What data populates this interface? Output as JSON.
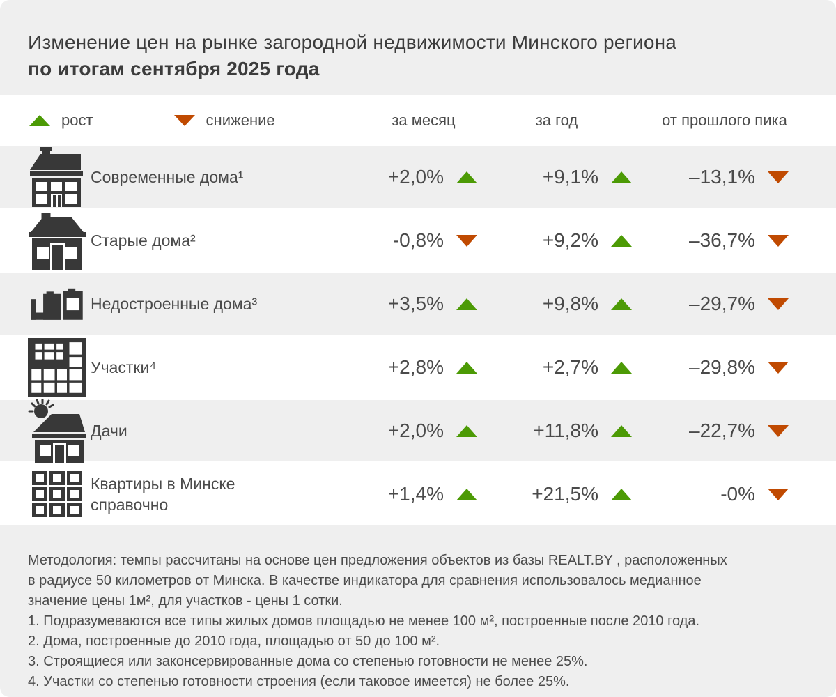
{
  "title": {
    "line1": "Изменение цен на рынке загородной недвижимости Минского региона",
    "line2": "по итогам сентября 2025 года"
  },
  "legend": {
    "up_label": "рост",
    "down_label": "снижение"
  },
  "columns": [
    "за месяц",
    "за год",
    "от прошлого пика"
  ],
  "colors": {
    "up": "#4c9a05",
    "down": "#c04a01",
    "band": "#efefef",
    "icon": "#383838",
    "text": "#4a4a4a"
  },
  "rows": [
    {
      "icon": "modern-house-icon",
      "label": "Современные дома¹",
      "month": {
        "value": "+2,0%",
        "dir": "up"
      },
      "year": {
        "value": "+9,1%",
        "dir": "up"
      },
      "peak": {
        "value": "–13,1%",
        "dir": "down"
      }
    },
    {
      "icon": "old-house-icon",
      "label": "Старые дома²",
      "month": {
        "value": "-0,8%",
        "dir": "down"
      },
      "year": {
        "value": "+9,2%",
        "dir": "up"
      },
      "peak": {
        "value": "–36,7%",
        "dir": "down"
      }
    },
    {
      "icon": "unfinished-house-icon",
      "label": "Недостроенные дома³",
      "month": {
        "value": "+3,5%",
        "dir": "up"
      },
      "year": {
        "value": "+9,8%",
        "dir": "up"
      },
      "peak": {
        "value": "–29,7%",
        "dir": "down"
      }
    },
    {
      "icon": "land-plot-icon",
      "label": "Участки⁴",
      "month": {
        "value": "+2,8%",
        "dir": "up"
      },
      "year": {
        "value": "+2,7%",
        "dir": "up"
      },
      "peak": {
        "value": "–29,8%",
        "dir": "down"
      }
    },
    {
      "icon": "dacha-house-icon",
      "label": "Дачи",
      "month": {
        "value": "+2,0%",
        "dir": "up"
      },
      "year": {
        "value": "+11,8%",
        "dir": "up"
      },
      "peak": {
        "value": "–22,7%",
        "dir": "down"
      }
    },
    {
      "icon": "apartment-building-icon",
      "label": "Квартиры в Минске",
      "label2": "справочно",
      "month": {
        "value": "+1,4%",
        "dir": "up"
      },
      "year": {
        "value": "+21,5%",
        "dir": "up"
      },
      "peak": {
        "value": "-0%",
        "dir": "down"
      }
    }
  ],
  "footer": {
    "methodology_lines": [
      "Методология: темпы рассчитаны на основе цен предложения объектов из базы REALT.BY , расположенных",
      "в радиусе 50 километров от Минска. В качестве индикатора для сравнения использовалось медианное",
      "значение цены 1м², для участков  - цены 1 сотки."
    ],
    "notes": [
      "1. Подразумеваются все типы жилых домов площадью не менее 100 м², построенные после 2010 года.",
      "2. Дома, построенные до 2010 года, площадью от 50 до 100 м².",
      "3. Строящиеся или законсервированные дома со степенью готовности не менее 25%.",
      "4. Участки со степенью готовности строения (если таковое имеется) не более 25%."
    ]
  },
  "chart_data": {
    "type": "table",
    "title": "Изменение цен на рынке загородной недвижимости Минского региона по итогам сентября 2025 года",
    "columns": [
      "за месяц",
      "за год",
      "от прошлого пика"
    ],
    "units": "%",
    "rows": [
      {
        "category": "Современные дома",
        "month": 2.0,
        "year": 9.1,
        "from_peak": -13.1
      },
      {
        "category": "Старые дома",
        "month": -0.8,
        "year": 9.2,
        "from_peak": -36.7
      },
      {
        "category": "Недостроенные дома",
        "month": 3.5,
        "year": 9.8,
        "from_peak": -29.7
      },
      {
        "category": "Участки",
        "month": 2.8,
        "year": 2.7,
        "from_peak": -29.8
      },
      {
        "category": "Дачи",
        "month": 2.0,
        "year": 11.8,
        "from_peak": -22.7
      },
      {
        "category": "Квартиры в Минске (справочно)",
        "month": 1.4,
        "year": 21.5,
        "from_peak": 0
      }
    ],
    "legend": {
      "up": "рост",
      "down": "снижение"
    }
  }
}
